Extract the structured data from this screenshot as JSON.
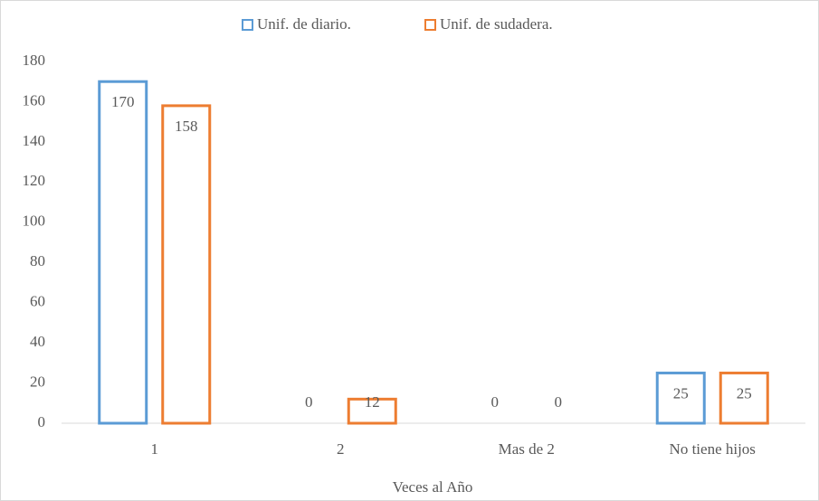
{
  "chart_data": {
    "type": "bar",
    "categories": [
      "1",
      "2",
      "Mas de 2",
      "No tiene hijos"
    ],
    "series": [
      {
        "name": "Unif. de diario.",
        "color": "#5b9bd5",
        "values": [
          170,
          0,
          0,
          25
        ]
      },
      {
        "name": "Unif. de sudadera.",
        "color": "#ed7d31",
        "values": [
          158,
          12,
          0,
          25
        ]
      }
    ],
    "x_label": "Veces al Año",
    "ylim": [
      0,
      180
    ],
    "yticks": [
      0,
      20,
      40,
      60,
      80,
      100,
      120,
      140,
      160,
      180
    ],
    "grid": false,
    "legend": "top"
  }
}
